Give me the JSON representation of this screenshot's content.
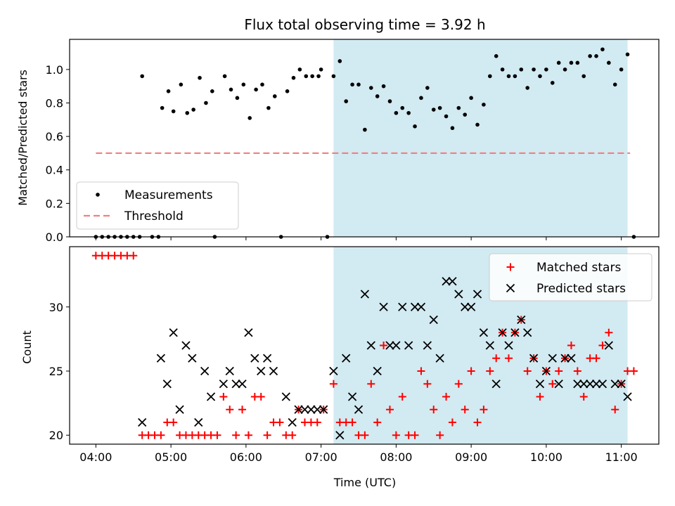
{
  "chart_data": [
    {
      "type": "scatter",
      "title": "Flux total observing time = 3.92 h",
      "ylabel": "Matched/Predicted stars",
      "ylim": [
        0,
        1.18
      ],
      "yticks": [
        0.0,
        0.2,
        0.4,
        0.6,
        0.8,
        1.0
      ],
      "ytick_labels": [
        "0.0",
        "0.2",
        "0.4",
        "0.6",
        "0.8",
        "1.0"
      ],
      "xlim_hours": [
        3.65,
        11.5
      ],
      "grid": false,
      "legend_position": "lower-left",
      "shaded_region": {
        "x_start": "07:10",
        "x_end": "11:05",
        "color": "#add8e6"
      },
      "series": [
        {
          "name": "Measurements",
          "marker": "dot",
          "color": "#000000",
          "points": [
            [
              "04:00",
              0.0
            ],
            [
              "04:05",
              0.0
            ],
            [
              "04:10",
              0.0
            ],
            [
              "04:15",
              0.0
            ],
            [
              "04:20",
              0.0
            ],
            [
              "04:25",
              0.0
            ],
            [
              "04:30",
              0.0
            ],
            [
              "04:35",
              0.0
            ],
            [
              "04:37",
              0.96
            ],
            [
              "04:45",
              0.0
            ],
            [
              "04:50",
              0.0
            ],
            [
              "04:53",
              0.77
            ],
            [
              "04:58",
              0.87
            ],
            [
              "05:02",
              0.75
            ],
            [
              "05:08",
              0.91
            ],
            [
              "05:13",
              0.74
            ],
            [
              "05:18",
              0.76
            ],
            [
              "05:23",
              0.95
            ],
            [
              "05:28",
              0.8
            ],
            [
              "05:33",
              0.87
            ],
            [
              "05:35",
              0.0
            ],
            [
              "05:43",
              0.96
            ],
            [
              "05:48",
              0.88
            ],
            [
              "05:53",
              0.83
            ],
            [
              "05:58",
              0.91
            ],
            [
              "06:03",
              0.71
            ],
            [
              "06:08",
              0.88
            ],
            [
              "06:13",
              0.91
            ],
            [
              "06:18",
              0.77
            ],
            [
              "06:23",
              0.84
            ],
            [
              "06:28",
              0.0
            ],
            [
              "06:33",
              0.87
            ],
            [
              "06:38",
              0.95
            ],
            [
              "06:43",
              1.0
            ],
            [
              "06:48",
              0.96
            ],
            [
              "06:53",
              0.96
            ],
            [
              "06:58",
              0.96
            ],
            [
              "07:00",
              1.0
            ],
            [
              "07:05",
              0.0
            ],
            [
              "07:10",
              0.96
            ],
            [
              "07:15",
              1.05
            ],
            [
              "07:20",
              0.81
            ],
            [
              "07:25",
              0.91
            ],
            [
              "07:30",
              0.91
            ],
            [
              "07:35",
              0.64
            ],
            [
              "07:40",
              0.89
            ],
            [
              "07:45",
              0.84
            ],
            [
              "07:50",
              0.9
            ],
            [
              "07:55",
              0.81
            ],
            [
              "08:00",
              0.74
            ],
            [
              "08:05",
              0.77
            ],
            [
              "08:10",
              0.74
            ],
            [
              "08:15",
              0.66
            ],
            [
              "08:20",
              0.83
            ],
            [
              "08:25",
              0.89
            ],
            [
              "08:30",
              0.76
            ],
            [
              "08:35",
              0.77
            ],
            [
              "08:40",
              0.72
            ],
            [
              "08:45",
              0.65
            ],
            [
              "08:50",
              0.77
            ],
            [
              "08:55",
              0.73
            ],
            [
              "09:00",
              0.83
            ],
            [
              "09:05",
              0.67
            ],
            [
              "09:10",
              0.79
            ],
            [
              "09:15",
              0.96
            ],
            [
              "09:20",
              1.08
            ],
            [
              "09:25",
              1.0
            ],
            [
              "09:30",
              0.96
            ],
            [
              "09:35",
              0.96
            ],
            [
              "09:40",
              1.0
            ],
            [
              "09:45",
              0.89
            ],
            [
              "09:50",
              1.0
            ],
            [
              "09:55",
              0.96
            ],
            [
              "10:00",
              1.0
            ],
            [
              "10:05",
              0.92
            ],
            [
              "10:10",
              1.04
            ],
            [
              "10:15",
              1.0
            ],
            [
              "10:20",
              1.04
            ],
            [
              "10:25",
              1.04
            ],
            [
              "10:30",
              0.96
            ],
            [
              "10:35",
              1.08
            ],
            [
              "10:40",
              1.08
            ],
            [
              "10:45",
              1.12
            ],
            [
              "10:50",
              1.04
            ],
            [
              "10:55",
              0.91
            ],
            [
              "11:00",
              1.0
            ],
            [
              "11:05",
              1.09
            ],
            [
              "11:10",
              0.0
            ]
          ]
        },
        {
          "name": "Threshold",
          "marker": "dashed-line",
          "color": "#f08080",
          "points": [
            [
              "04:00",
              0.5
            ],
            [
              "11:07",
              0.5
            ]
          ]
        }
      ]
    },
    {
      "type": "scatter",
      "xlabel": "Time (UTC)",
      "ylabel": "Count",
      "ylim": [
        19.3,
        34.7
      ],
      "yticks": [
        20,
        25,
        30
      ],
      "ytick_labels": [
        "20",
        "25",
        "30"
      ],
      "xticks": [
        "04:00",
        "05:00",
        "06:00",
        "07:00",
        "08:00",
        "09:00",
        "10:00",
        "11:00"
      ],
      "xlim_hours": [
        3.65,
        11.5
      ],
      "grid": false,
      "legend_position": "top-right",
      "shaded_region": {
        "x_start": "07:10",
        "x_end": "11:05",
        "color": "#add8e6"
      },
      "series": [
        {
          "name": "Matched stars",
          "marker": "plus",
          "color": "#ff0000",
          "points": [
            [
              "04:00",
              34
            ],
            [
              "04:05",
              34
            ],
            [
              "04:10",
              34
            ],
            [
              "04:15",
              34
            ],
            [
              "04:20",
              34
            ],
            [
              "04:25",
              34
            ],
            [
              "04:30",
              34
            ],
            [
              "04:37",
              20
            ],
            [
              "04:42",
              20
            ],
            [
              "04:47",
              20
            ],
            [
              "04:52",
              20
            ],
            [
              "04:57",
              21
            ],
            [
              "05:02",
              21
            ],
            [
              "05:07",
              20
            ],
            [
              "05:12",
              20
            ],
            [
              "05:17",
              20
            ],
            [
              "05:22",
              20
            ],
            [
              "05:27",
              20
            ],
            [
              "05:32",
              20
            ],
            [
              "05:37",
              20
            ],
            [
              "05:42",
              23
            ],
            [
              "05:47",
              22
            ],
            [
              "05:52",
              20
            ],
            [
              "05:57",
              22
            ],
            [
              "06:02",
              20
            ],
            [
              "06:07",
              23
            ],
            [
              "06:12",
              23
            ],
            [
              "06:17",
              20
            ],
            [
              "06:22",
              21
            ],
            [
              "06:27",
              21
            ],
            [
              "06:32",
              20
            ],
            [
              "06:37",
              20
            ],
            [
              "06:42",
              22
            ],
            [
              "06:47",
              21
            ],
            [
              "06:52",
              21
            ],
            [
              "06:57",
              21
            ],
            [
              "07:02",
              22
            ],
            [
              "07:10",
              24
            ],
            [
              "07:15",
              21
            ],
            [
              "07:20",
              21
            ],
            [
              "07:25",
              21
            ],
            [
              "07:30",
              20
            ],
            [
              "07:35",
              20
            ],
            [
              "07:40",
              24
            ],
            [
              "07:45",
              21
            ],
            [
              "07:50",
              27
            ],
            [
              "07:55",
              22
            ],
            [
              "08:00",
              20
            ],
            [
              "08:05",
              23
            ],
            [
              "08:10",
              20
            ],
            [
              "08:15",
              20
            ],
            [
              "08:20",
              25
            ],
            [
              "08:25",
              24
            ],
            [
              "08:30",
              22
            ],
            [
              "08:35",
              20
            ],
            [
              "08:40",
              23
            ],
            [
              "08:45",
              21
            ],
            [
              "08:50",
              24
            ],
            [
              "08:55",
              22
            ],
            [
              "09:00",
              25
            ],
            [
              "09:05",
              21
            ],
            [
              "09:10",
              22
            ],
            [
              "09:15",
              25
            ],
            [
              "09:20",
              26
            ],
            [
              "09:25",
              28
            ],
            [
              "09:30",
              26
            ],
            [
              "09:35",
              28
            ],
            [
              "09:40",
              29
            ],
            [
              "09:45",
              25
            ],
            [
              "09:50",
              26
            ],
            [
              "09:55",
              23
            ],
            [
              "10:00",
              25
            ],
            [
              "10:05",
              24
            ],
            [
              "10:10",
              25
            ],
            [
              "10:15",
              26
            ],
            [
              "10:20",
              27
            ],
            [
              "10:25",
              25
            ],
            [
              "10:30",
              23
            ],
            [
              "10:35",
              26
            ],
            [
              "10:40",
              26
            ],
            [
              "10:45",
              27
            ],
            [
              "10:50",
              28
            ],
            [
              "10:55",
              22
            ],
            [
              "11:00",
              24
            ],
            [
              "11:05",
              25
            ],
            [
              "11:10",
              25
            ]
          ]
        },
        {
          "name": "Predicted stars",
          "marker": "x",
          "color": "#000000",
          "points": [
            [
              "04:37",
              21
            ],
            [
              "04:52",
              26
            ],
            [
              "04:57",
              24
            ],
            [
              "05:02",
              28
            ],
            [
              "05:07",
              22
            ],
            [
              "05:12",
              27
            ],
            [
              "05:17",
              26
            ],
            [
              "05:22",
              21
            ],
            [
              "05:27",
              25
            ],
            [
              "05:32",
              23
            ],
            [
              "05:42",
              24
            ],
            [
              "05:47",
              25
            ],
            [
              "05:52",
              24
            ],
            [
              "05:57",
              24
            ],
            [
              "06:02",
              28
            ],
            [
              "06:07",
              26
            ],
            [
              "06:12",
              25
            ],
            [
              "06:17",
              26
            ],
            [
              "06:22",
              25
            ],
            [
              "06:32",
              23
            ],
            [
              "06:37",
              21
            ],
            [
              "06:42",
              22
            ],
            [
              "06:47",
              22
            ],
            [
              "06:52",
              22
            ],
            [
              "06:57",
              22
            ],
            [
              "07:02",
              22
            ],
            [
              "07:10",
              25
            ],
            [
              "07:15",
              20
            ],
            [
              "07:20",
              26
            ],
            [
              "07:25",
              23
            ],
            [
              "07:30",
              22
            ],
            [
              "07:35",
              31
            ],
            [
              "07:40",
              27
            ],
            [
              "07:45",
              25
            ],
            [
              "07:50",
              30
            ],
            [
              "07:55",
              27
            ],
            [
              "08:00",
              27
            ],
            [
              "08:05",
              30
            ],
            [
              "08:10",
              27
            ],
            [
              "08:15",
              30
            ],
            [
              "08:20",
              30
            ],
            [
              "08:25",
              27
            ],
            [
              "08:30",
              29
            ],
            [
              "08:35",
              26
            ],
            [
              "08:40",
              32
            ],
            [
              "08:45",
              32
            ],
            [
              "08:50",
              31
            ],
            [
              "08:55",
              30
            ],
            [
              "09:00",
              30
            ],
            [
              "09:05",
              31
            ],
            [
              "09:10",
              28
            ],
            [
              "09:15",
              27
            ],
            [
              "09:20",
              24
            ],
            [
              "09:25",
              28
            ],
            [
              "09:30",
              27
            ],
            [
              "09:35",
              28
            ],
            [
              "09:40",
              29
            ],
            [
              "09:45",
              28
            ],
            [
              "09:50",
              26
            ],
            [
              "09:55",
              24
            ],
            [
              "10:00",
              25
            ],
            [
              "10:05",
              26
            ],
            [
              "10:10",
              24
            ],
            [
              "10:15",
              26
            ],
            [
              "10:20",
              26
            ],
            [
              "10:25",
              24
            ],
            [
              "10:30",
              24
            ],
            [
              "10:35",
              24
            ],
            [
              "10:40",
              24
            ],
            [
              "10:45",
              24
            ],
            [
              "10:50",
              27
            ],
            [
              "10:55",
              24
            ],
            [
              "11:00",
              24
            ],
            [
              "11:05",
              23
            ]
          ]
        }
      ]
    }
  ]
}
